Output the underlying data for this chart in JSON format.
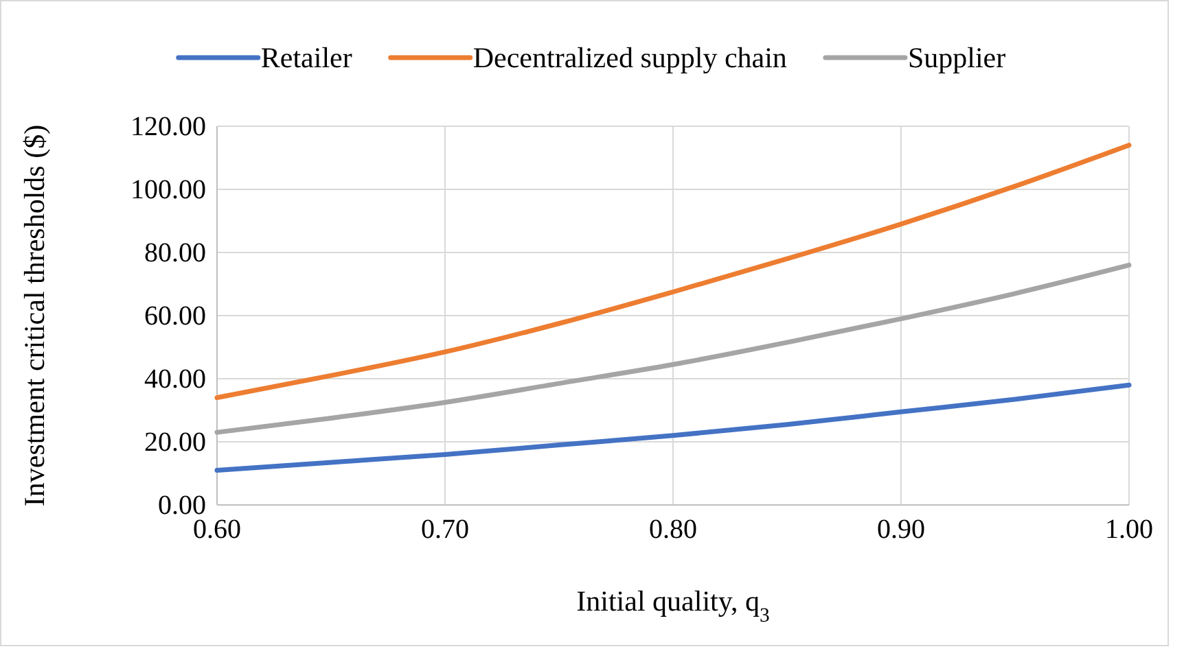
{
  "chart_data": {
    "type": "line",
    "xlabel": "Initial quality, q$_{3}$",
    "ylabel": "Investment critical thresholds ($)",
    "x": [
      0.6,
      0.65,
      0.7,
      0.75,
      0.8,
      0.85,
      0.9,
      0.95,
      1.0
    ],
    "series": [
      {
        "name": "Retailer",
        "color": "#4472c4",
        "values": [
          11,
          13.5,
          16,
          19,
          22,
          25.5,
          29.5,
          33.5,
          38
        ]
      },
      {
        "name": "Decentralized supply chain",
        "color": "#ed7d31",
        "values": [
          34,
          41,
          48.5,
          57.5,
          67.5,
          78,
          89,
          101,
          114
        ]
      },
      {
        "name": "Supplier",
        "color": "#a5a5a5",
        "values": [
          23,
          27.5,
          32.5,
          38.5,
          44.5,
          51.5,
          59,
          67,
          76
        ]
      }
    ],
    "xlim": [
      0.6,
      1.0
    ],
    "xticks": [
      {
        "value": 0.6,
        "label": "0.60"
      },
      {
        "value": 0.7,
        "label": "0.70"
      },
      {
        "value": 0.8,
        "label": "0.80"
      },
      {
        "value": 0.9,
        "label": "0.90"
      },
      {
        "value": 1.0,
        "label": "1.00"
      }
    ],
    "ylim": [
      0,
      120
    ],
    "yticks": [
      {
        "value": 0,
        "label": "0.00"
      },
      {
        "value": 20,
        "label": "20.00"
      },
      {
        "value": 40,
        "label": "40.00"
      },
      {
        "value": 60,
        "label": "60.00"
      },
      {
        "value": 80,
        "label": "80.00"
      },
      {
        "value": 100,
        "label": "100.00"
      },
      {
        "value": 120,
        "label": "120.00"
      }
    ],
    "grid": true,
    "legend": "top",
    "marker": "none",
    "line_style": "solid"
  }
}
